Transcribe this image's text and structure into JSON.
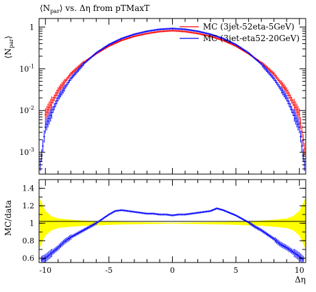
{
  "page_title": "⟨N_par⟩ vs. Δη from pTMaxT",
  "chart_data": {
    "type": "scatter",
    "title": "⟨N_par⟩ vs. Δη from pTMaxT",
    "main": {
      "ylabel": "⟨N_par⟩",
      "yscale": "log",
      "ylim": [
        0.0003,
        1.6
      ],
      "yticks": [
        {
          "value": 1,
          "label": "1"
        },
        {
          "value": 0.1,
          "label": "10^-1"
        },
        {
          "value": 0.01,
          "label": "10^-2"
        },
        {
          "value": 0.001,
          "label": "10^-3"
        }
      ]
    },
    "ratio": {
      "ylabel": "MC/data",
      "ylim": [
        0.55,
        1.5
      ],
      "yticks": [
        {
          "value": 0.6,
          "label": "0.6"
        },
        {
          "value": 0.8,
          "label": "0.8"
        },
        {
          "value": 1.0,
          "label": "1"
        },
        {
          "value": 1.2,
          "label": "1.2"
        },
        {
          "value": 1.4,
          "label": "1.4"
        }
      ],
      "band_color": "#ffff00",
      "band_halfwidth": {
        "x": [
          0,
          2,
          4,
          5,
          6,
          7,
          8,
          9,
          9.5,
          10,
          10.5
        ],
        "d": [
          0.005,
          0.01,
          0.014,
          0.018,
          0.024,
          0.03,
          0.04,
          0.055,
          0.08,
          0.14,
          0.3
        ]
      }
    },
    "x": {
      "label": "Δη",
      "xlim": [
        -10.5,
        10.5
      ],
      "ticks": [
        {
          "value": -10,
          "label": "-10"
        },
        {
          "value": -5,
          "label": "-5"
        },
        {
          "value": 0,
          "label": "0"
        },
        {
          "value": 5,
          "label": "5"
        },
        {
          "value": 10,
          "label": "10"
        }
      ]
    },
    "series": [
      {
        "name": "MC (3jet-52eta-5GeV)",
        "color": "#ff0000",
        "x": [
          -10,
          -9,
          -8,
          -7,
          -6,
          -5,
          -4,
          -3,
          -2,
          -1,
          0,
          1,
          2,
          3,
          4,
          5,
          6,
          7,
          8,
          9,
          10,
          10.4
        ],
        "y": [
          0.008,
          0.03,
          0.075,
          0.14,
          0.23,
          0.35,
          0.48,
          0.6,
          0.7,
          0.78,
          0.82,
          0.78,
          0.7,
          0.6,
          0.48,
          0.35,
          0.23,
          0.14,
          0.075,
          0.03,
          0.008,
          0.0012
        ]
      },
      {
        "name": "MC (3jet-eta52-20GeV)",
        "color": "#0000ff",
        "x": [
          -10.4,
          -10,
          -9,
          -8,
          -7,
          -6,
          -5,
          -4,
          -3,
          -2,
          -1,
          0,
          1,
          2,
          3,
          4,
          5,
          6,
          7,
          8,
          9,
          10,
          10.4
        ],
        "y": [
          0.0005,
          0.004,
          0.02,
          0.058,
          0.13,
          0.24,
          0.38,
          0.53,
          0.67,
          0.79,
          0.88,
          0.92,
          0.88,
          0.79,
          0.67,
          0.53,
          0.38,
          0.24,
          0.13,
          0.058,
          0.02,
          0.004,
          0.0005
        ]
      }
    ],
    "ratio_series": [
      {
        "name": "MC (3jet-eta52-20GeV)",
        "color": "#0000ff",
        "x": [
          -10.3,
          -10,
          -9.5,
          -9,
          -8.5,
          -8,
          -7.5,
          -7,
          -6.5,
          -6,
          -5.5,
          -5,
          -4.5,
          -4,
          -3.5,
          -3,
          -2.5,
          -2,
          -1.5,
          -1,
          -0.5,
          0,
          0.5,
          1,
          1.5,
          2,
          2.5,
          3,
          3.5,
          4,
          4.5,
          5,
          5.5,
          6,
          6.5,
          7,
          7.5,
          8,
          8.5,
          9,
          9.5,
          10,
          10.3
        ],
        "y": [
          0.58,
          0.6,
          0.66,
          0.72,
          0.79,
          0.84,
          0.88,
          0.92,
          0.96,
          1.0,
          1.05,
          1.1,
          1.14,
          1.15,
          1.14,
          1.13,
          1.12,
          1.11,
          1.11,
          1.1,
          1.1,
          1.09,
          1.1,
          1.1,
          1.11,
          1.12,
          1.13,
          1.14,
          1.17,
          1.15,
          1.12,
          1.09,
          1.05,
          1.01,
          0.96,
          0.92,
          0.87,
          0.82,
          0.76,
          0.72,
          0.67,
          0.62,
          0.58
        ]
      }
    ]
  }
}
